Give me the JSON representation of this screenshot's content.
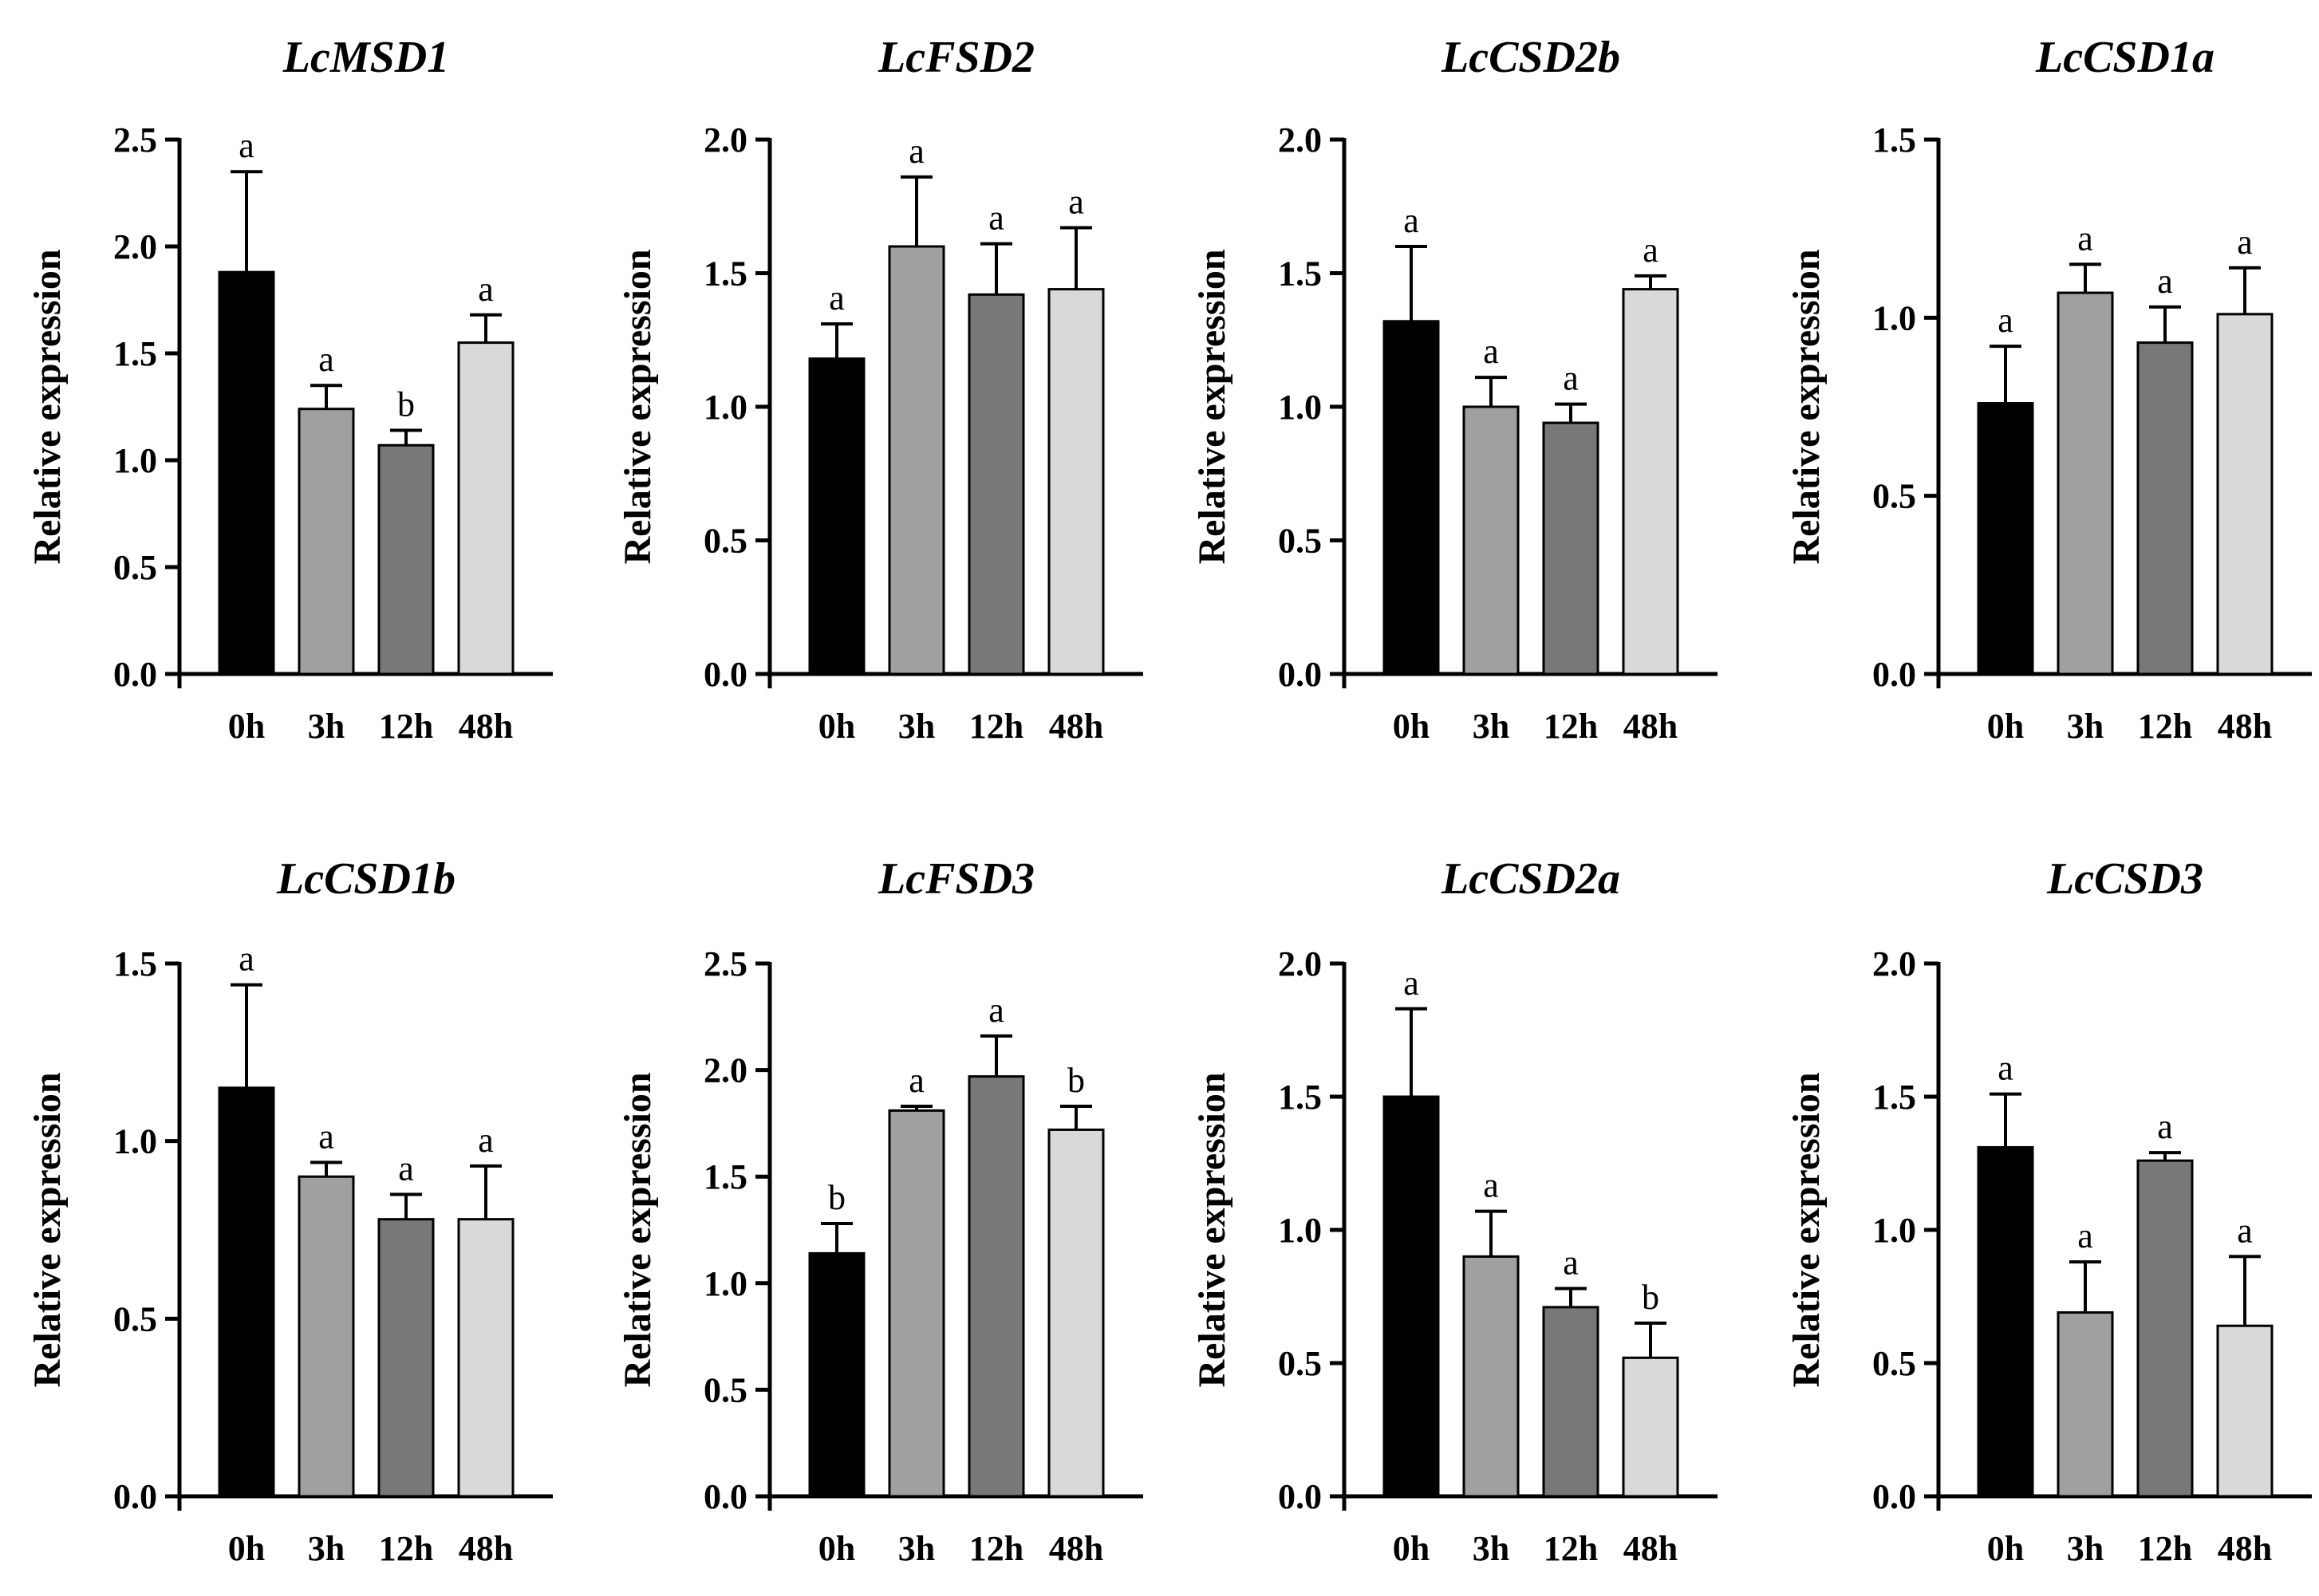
{
  "figure": {
    "bar_colors": [
      "#000000",
      "#a0a0a0",
      "#787878",
      "#d9d9d9"
    ],
    "axis_color": "#000000"
  },
  "chart_data": [
    {
      "type": "bar",
      "title": "LcMSD1",
      "ylabel": "Relative expression",
      "categories": [
        "0h",
        "3h",
        "12h",
        "48h"
      ],
      "values": [
        1.88,
        1.24,
        1.07,
        1.55
      ],
      "errors": [
        0.47,
        0.11,
        0.07,
        0.13
      ],
      "significance": [
        "a",
        "a",
        "b",
        "a"
      ],
      "ylim": [
        0,
        2.5
      ],
      "yticks": [
        0.0,
        0.5,
        1.0,
        1.5,
        2.0,
        2.5
      ],
      "ytick_labels": [
        "0.0",
        "0.5",
        "1.0",
        "1.5",
        "2.0",
        "2.5"
      ]
    },
    {
      "type": "bar",
      "title": "LcFSD2",
      "ylabel": "Relative expression",
      "categories": [
        "0h",
        "3h",
        "12h",
        "48h"
      ],
      "values": [
        1.18,
        1.6,
        1.42,
        1.44
      ],
      "errors": [
        0.13,
        0.26,
        0.19,
        0.23
      ],
      "significance": [
        "a",
        "a",
        "a",
        "a"
      ],
      "ylim": [
        0,
        2.0
      ],
      "yticks": [
        0.0,
        0.5,
        1.0,
        1.5,
        2.0
      ],
      "ytick_labels": [
        "0.0",
        "0.5",
        "1.0",
        "1.5",
        "2.0"
      ]
    },
    {
      "type": "bar",
      "title": "LcCSD2b",
      "ylabel": "Relative expression",
      "categories": [
        "0h",
        "3h",
        "12h",
        "48h"
      ],
      "values": [
        1.32,
        1.0,
        0.94,
        1.44
      ],
      "errors": [
        0.28,
        0.11,
        0.07,
        0.05
      ],
      "significance": [
        "a",
        "a",
        "a",
        "a"
      ],
      "ylim": [
        0,
        2.0
      ],
      "yticks": [
        0.0,
        0.5,
        1.0,
        1.5,
        2.0
      ],
      "ytick_labels": [
        "0.0",
        "0.5",
        "1.0",
        "1.5",
        "2.0"
      ]
    },
    {
      "type": "bar",
      "title": "LcCSD1a",
      "ylabel": "Relative expression",
      "categories": [
        "0h",
        "3h",
        "12h",
        "48h"
      ],
      "values": [
        0.76,
        1.07,
        0.93,
        1.01
      ],
      "errors": [
        0.16,
        0.08,
        0.1,
        0.13
      ],
      "significance": [
        "a",
        "a",
        "a",
        "a"
      ],
      "ylim": [
        0,
        1.5
      ],
      "yticks": [
        0.0,
        0.5,
        1.0,
        1.5
      ],
      "ytick_labels": [
        "0.0",
        "0.5",
        "1.0",
        "1.5"
      ]
    },
    {
      "type": "bar",
      "title": "LcCSD1b",
      "ylabel": "Relative expression",
      "categories": [
        "0h",
        "3h",
        "12h",
        "48h"
      ],
      "values": [
        1.15,
        0.9,
        0.78,
        0.78
      ],
      "errors": [
        0.29,
        0.04,
        0.07,
        0.15
      ],
      "significance": [
        "a",
        "a",
        "a",
        "a"
      ],
      "ylim": [
        0,
        1.5
      ],
      "yticks": [
        0.0,
        0.5,
        1.0,
        1.5
      ],
      "ytick_labels": [
        "0.0",
        "0.5",
        "1.0",
        "1.5"
      ]
    },
    {
      "type": "bar",
      "title": "LcFSD3",
      "ylabel": "Relative expression",
      "categories": [
        "0h",
        "3h",
        "12h",
        "48h"
      ],
      "values": [
        1.14,
        1.81,
        1.97,
        1.72
      ],
      "errors": [
        0.14,
        0.02,
        0.19,
        0.11
      ],
      "significance": [
        "b",
        "a",
        "a",
        "b"
      ],
      "ylim": [
        0,
        2.5
      ],
      "yticks": [
        0.0,
        0.5,
        1.0,
        1.5,
        2.0,
        2.5
      ],
      "ytick_labels": [
        "0.0",
        "0.5",
        "1.0",
        "1.5",
        "2.0",
        "2.5"
      ]
    },
    {
      "type": "bar",
      "title": "LcCSD2a",
      "ylabel": "Relative expression",
      "categories": [
        "0h",
        "3h",
        "12h",
        "48h"
      ],
      "values": [
        1.5,
        0.9,
        0.71,
        0.52
      ],
      "errors": [
        0.33,
        0.17,
        0.07,
        0.13
      ],
      "significance": [
        "a",
        "a",
        "a",
        "b"
      ],
      "ylim": [
        0,
        2.0
      ],
      "yticks": [
        0.0,
        0.5,
        1.0,
        1.5,
        2.0
      ],
      "ytick_labels": [
        "0.0",
        "0.5",
        "1.0",
        "1.5",
        "2.0"
      ]
    },
    {
      "type": "bar",
      "title": "LcCSD3",
      "ylabel": "Relative expression",
      "categories": [
        "0h",
        "3h",
        "12h",
        "48h"
      ],
      "values": [
        1.31,
        0.69,
        1.26,
        0.64
      ],
      "errors": [
        0.2,
        0.19,
        0.03,
        0.26
      ],
      "significance": [
        "a",
        "a",
        "a",
        "a"
      ],
      "ylim": [
        0,
        2.0
      ],
      "yticks": [
        0.0,
        0.5,
        1.0,
        1.5,
        2.0
      ],
      "ytick_labels": [
        "0.0",
        "0.5",
        "1.0",
        "1.5",
        "2.0"
      ]
    }
  ]
}
